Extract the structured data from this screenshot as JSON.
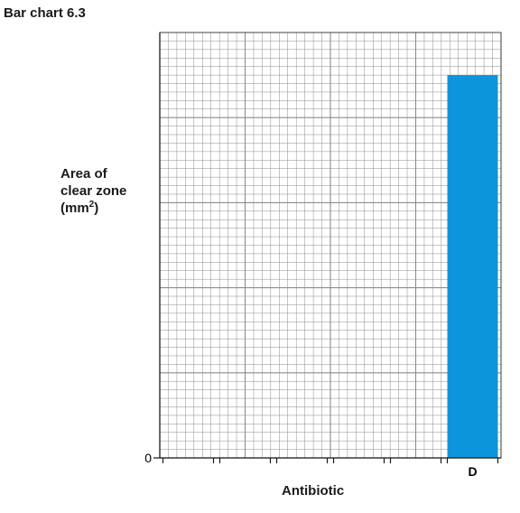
{
  "chart_data": {
    "type": "bar",
    "title": "Bar chart 6.3",
    "xlabel": "Antibiotic",
    "ylabel_lines": [
      "Area of",
      "clear zone",
      "(mm"
    ],
    "ylabel_unit_sup": "2",
    "ylabel_close": ")",
    "y_tick_label": "0",
    "categories": [
      "",
      "",
      "",
      "",
      "",
      "D"
    ],
    "values": [
      null,
      null,
      null,
      null,
      null,
      0.9
    ],
    "ylim": [
      0,
      1
    ],
    "grid": true,
    "bar_color": "#0d95dc",
    "grid_color": "#8c8c8c"
  }
}
